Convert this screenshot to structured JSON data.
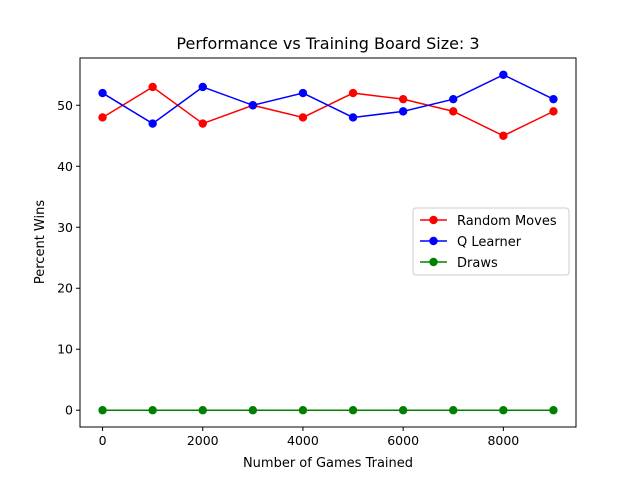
{
  "chart_data": {
    "type": "line",
    "title": "Performance vs Training Board Size: 3",
    "xlabel": "Number of Games Trained",
    "ylabel": "Percent Wins",
    "x": [
      0,
      1000,
      2000,
      3000,
      4000,
      5000,
      6000,
      7000,
      8000,
      9000
    ],
    "xlim": [
      -450,
      9450
    ],
    "ylim": [
      -2.75,
      57.75
    ],
    "xticks": [
      0,
      2000,
      4000,
      6000,
      8000
    ],
    "yticks": [
      0,
      10,
      20,
      30,
      40,
      50
    ],
    "grid": false,
    "legend_position": "center-right",
    "series": [
      {
        "name": "Random Moves",
        "color": "#ff0000",
        "values": [
          48,
          53,
          47,
          50,
          48,
          52,
          51,
          49,
          45,
          49
        ]
      },
      {
        "name": "Q Learner",
        "color": "#0000ff",
        "values": [
          52,
          47,
          53,
          50,
          52,
          48,
          49,
          51,
          55,
          51
        ]
      },
      {
        "name": "Draws",
        "color": "#008000",
        "values": [
          0,
          0,
          0,
          0,
          0,
          0,
          0,
          0,
          0,
          0
        ]
      }
    ]
  }
}
